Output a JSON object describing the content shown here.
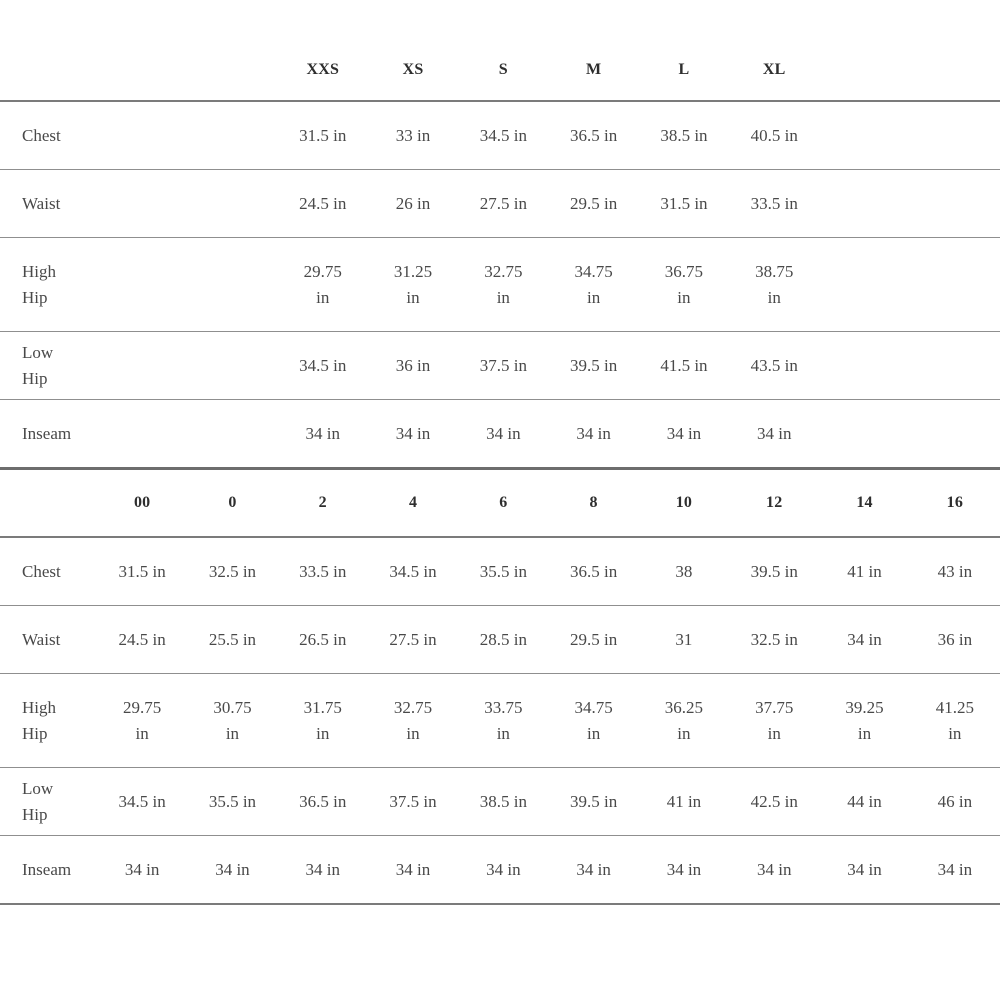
{
  "page": {
    "background_color": "#ffffff",
    "text_color": "#494949",
    "header_text_color": "#2e2e2e",
    "rule_color": "#8f8f8f",
    "heavy_rule_color": "#6d6d6d"
  },
  "size_chart": {
    "tables": [
      {
        "id": "alpha",
        "name": "alpha-size-table",
        "headers": [
          "",
          "",
          "XXS",
          "XS",
          "S",
          "M",
          "L",
          "XL",
          "",
          ""
        ],
        "rows": [
          {
            "label": "Chest",
            "wrap": false,
            "values": [
              "",
              "",
              "31.5 in",
              "33 in",
              "34.5 in",
              "36.5 in",
              "38.5 in",
              "40.5 in",
              "",
              ""
            ]
          },
          {
            "label": "Waist",
            "wrap": false,
            "values": [
              "",
              "",
              "24.5 in",
              "26 in",
              "27.5 in",
              "29.5 in",
              "31.5 in",
              "33.5 in",
              "",
              ""
            ]
          },
          {
            "label": "High Hip",
            "wrap": true,
            "values": [
              "",
              "",
              "29.75 in",
              "31.25 in",
              "32.75 in",
              "34.75 in",
              "36.75 in",
              "38.75 in",
              "",
              ""
            ]
          },
          {
            "label": "Low Hip",
            "wrap": false,
            "values": [
              "",
              "",
              "34.5 in",
              "36 in",
              "37.5 in",
              "39.5 in",
              "41.5 in",
              "43.5 in",
              "",
              ""
            ]
          },
          {
            "label": "Inseam",
            "wrap": false,
            "values": [
              "",
              "",
              "34 in",
              "34 in",
              "34 in",
              "34 in",
              "34 in",
              "34 in",
              "",
              ""
            ]
          }
        ]
      },
      {
        "id": "numeric",
        "name": "numeric-size-table",
        "headers": [
          "00",
          "0",
          "2",
          "4",
          "6",
          "8",
          "10",
          "12",
          "14",
          "16"
        ],
        "rows": [
          {
            "label": "Chest",
            "wrap": false,
            "values": [
              "31.5 in",
              "32.5 in",
              "33.5 in",
              "34.5 in",
              "35.5 in",
              "36.5 in",
              "38",
              "39.5 in",
              "41 in",
              "43 in"
            ]
          },
          {
            "label": "Waist",
            "wrap": false,
            "values": [
              "24.5 in",
              "25.5 in",
              "26.5 in",
              "27.5 in",
              "28.5 in",
              "29.5 in",
              "31",
              "32.5 in",
              "34 in",
              "36 in"
            ]
          },
          {
            "label": "High Hip",
            "wrap": true,
            "values": [
              "29.75 in",
              "30.75 in",
              "31.75 in",
              "32.75 in",
              "33.75 in",
              "34.75 in",
              "36.25 in",
              "37.75 in",
              "39.25 in",
              "41.25 in"
            ]
          },
          {
            "label": "Low Hip",
            "wrap": false,
            "values": [
              "34.5 in",
              "35.5 in",
              "36.5 in",
              "37.5 in",
              "38.5 in",
              "39.5 in",
              "41 in",
              "42.5 in",
              "44 in",
              "46 in"
            ]
          },
          {
            "label": "Inseam",
            "wrap": false,
            "values": [
              "34 in",
              "34 in",
              "34 in",
              "34 in",
              "34 in",
              "34 in",
              "34 in",
              "34 in",
              "34 in",
              "34 in"
            ]
          }
        ]
      }
    ]
  }
}
